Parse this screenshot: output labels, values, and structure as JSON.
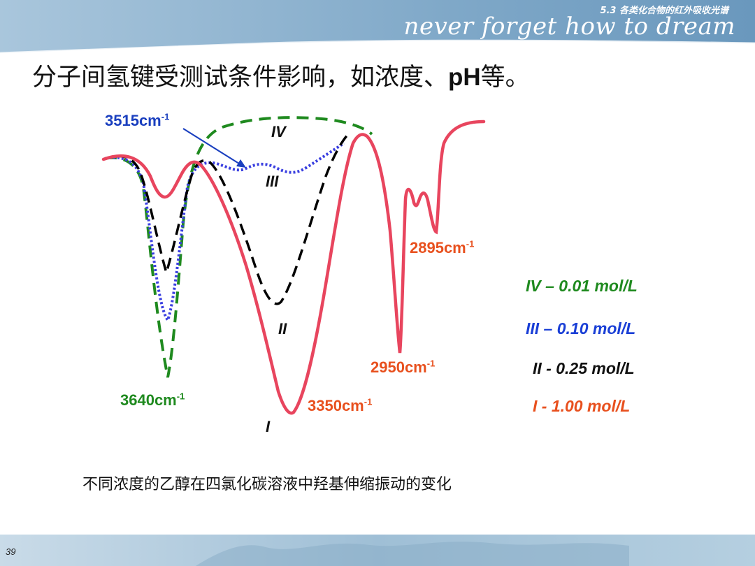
{
  "header": {
    "chapter": "5.3 各类化合物的红外吸收光谱",
    "motto": "never forget   how to dream"
  },
  "title": {
    "main": "分子间氢键受测试条件影响，如浓度、",
    "bold": "pH",
    "end": "等。"
  },
  "labels": {
    "peak_3515": {
      "value": "3515cm",
      "exp": "-1",
      "color": "#1a3fbf"
    },
    "peak_3640": {
      "value": "3640cm",
      "exp": "-1",
      "color": "#1f8a1f"
    },
    "peak_3350": {
      "value": "3350cm",
      "exp": "-1",
      "color": "#e8501e"
    },
    "peak_2950": {
      "value": "2950cm",
      "exp": "-1",
      "color": "#e8501e"
    },
    "peak_2895": {
      "value": "2895cm",
      "exp": "-1",
      "color": "#e8501e"
    }
  },
  "curve_labels": {
    "iv": "IV",
    "iii": "III",
    "ii": "II",
    "i": "I"
  },
  "legend": {
    "iv": {
      "text": "IV – 0.01 mol/L",
      "color": "#1f8a1f"
    },
    "iii": {
      "text": "III – 0.10 mol/L",
      "color": "#1a3fd6"
    },
    "ii": {
      "text": "II - 0.25 mol/L",
      "color": "#111111"
    },
    "i": {
      "text": "I - 1.00 mol/L",
      "color": "#e8501e"
    }
  },
  "caption": "不同浓度的乙醇在四氯化碳溶液中羟基伸缩振动的变化",
  "page_number": "39",
  "colors": {
    "curve_i": "#e8455e",
    "curve_ii": "#000000",
    "curve_iii": "#3a3fe0",
    "curve_iv": "#1f8a1f",
    "header_blue": "#8fb3d0"
  }
}
